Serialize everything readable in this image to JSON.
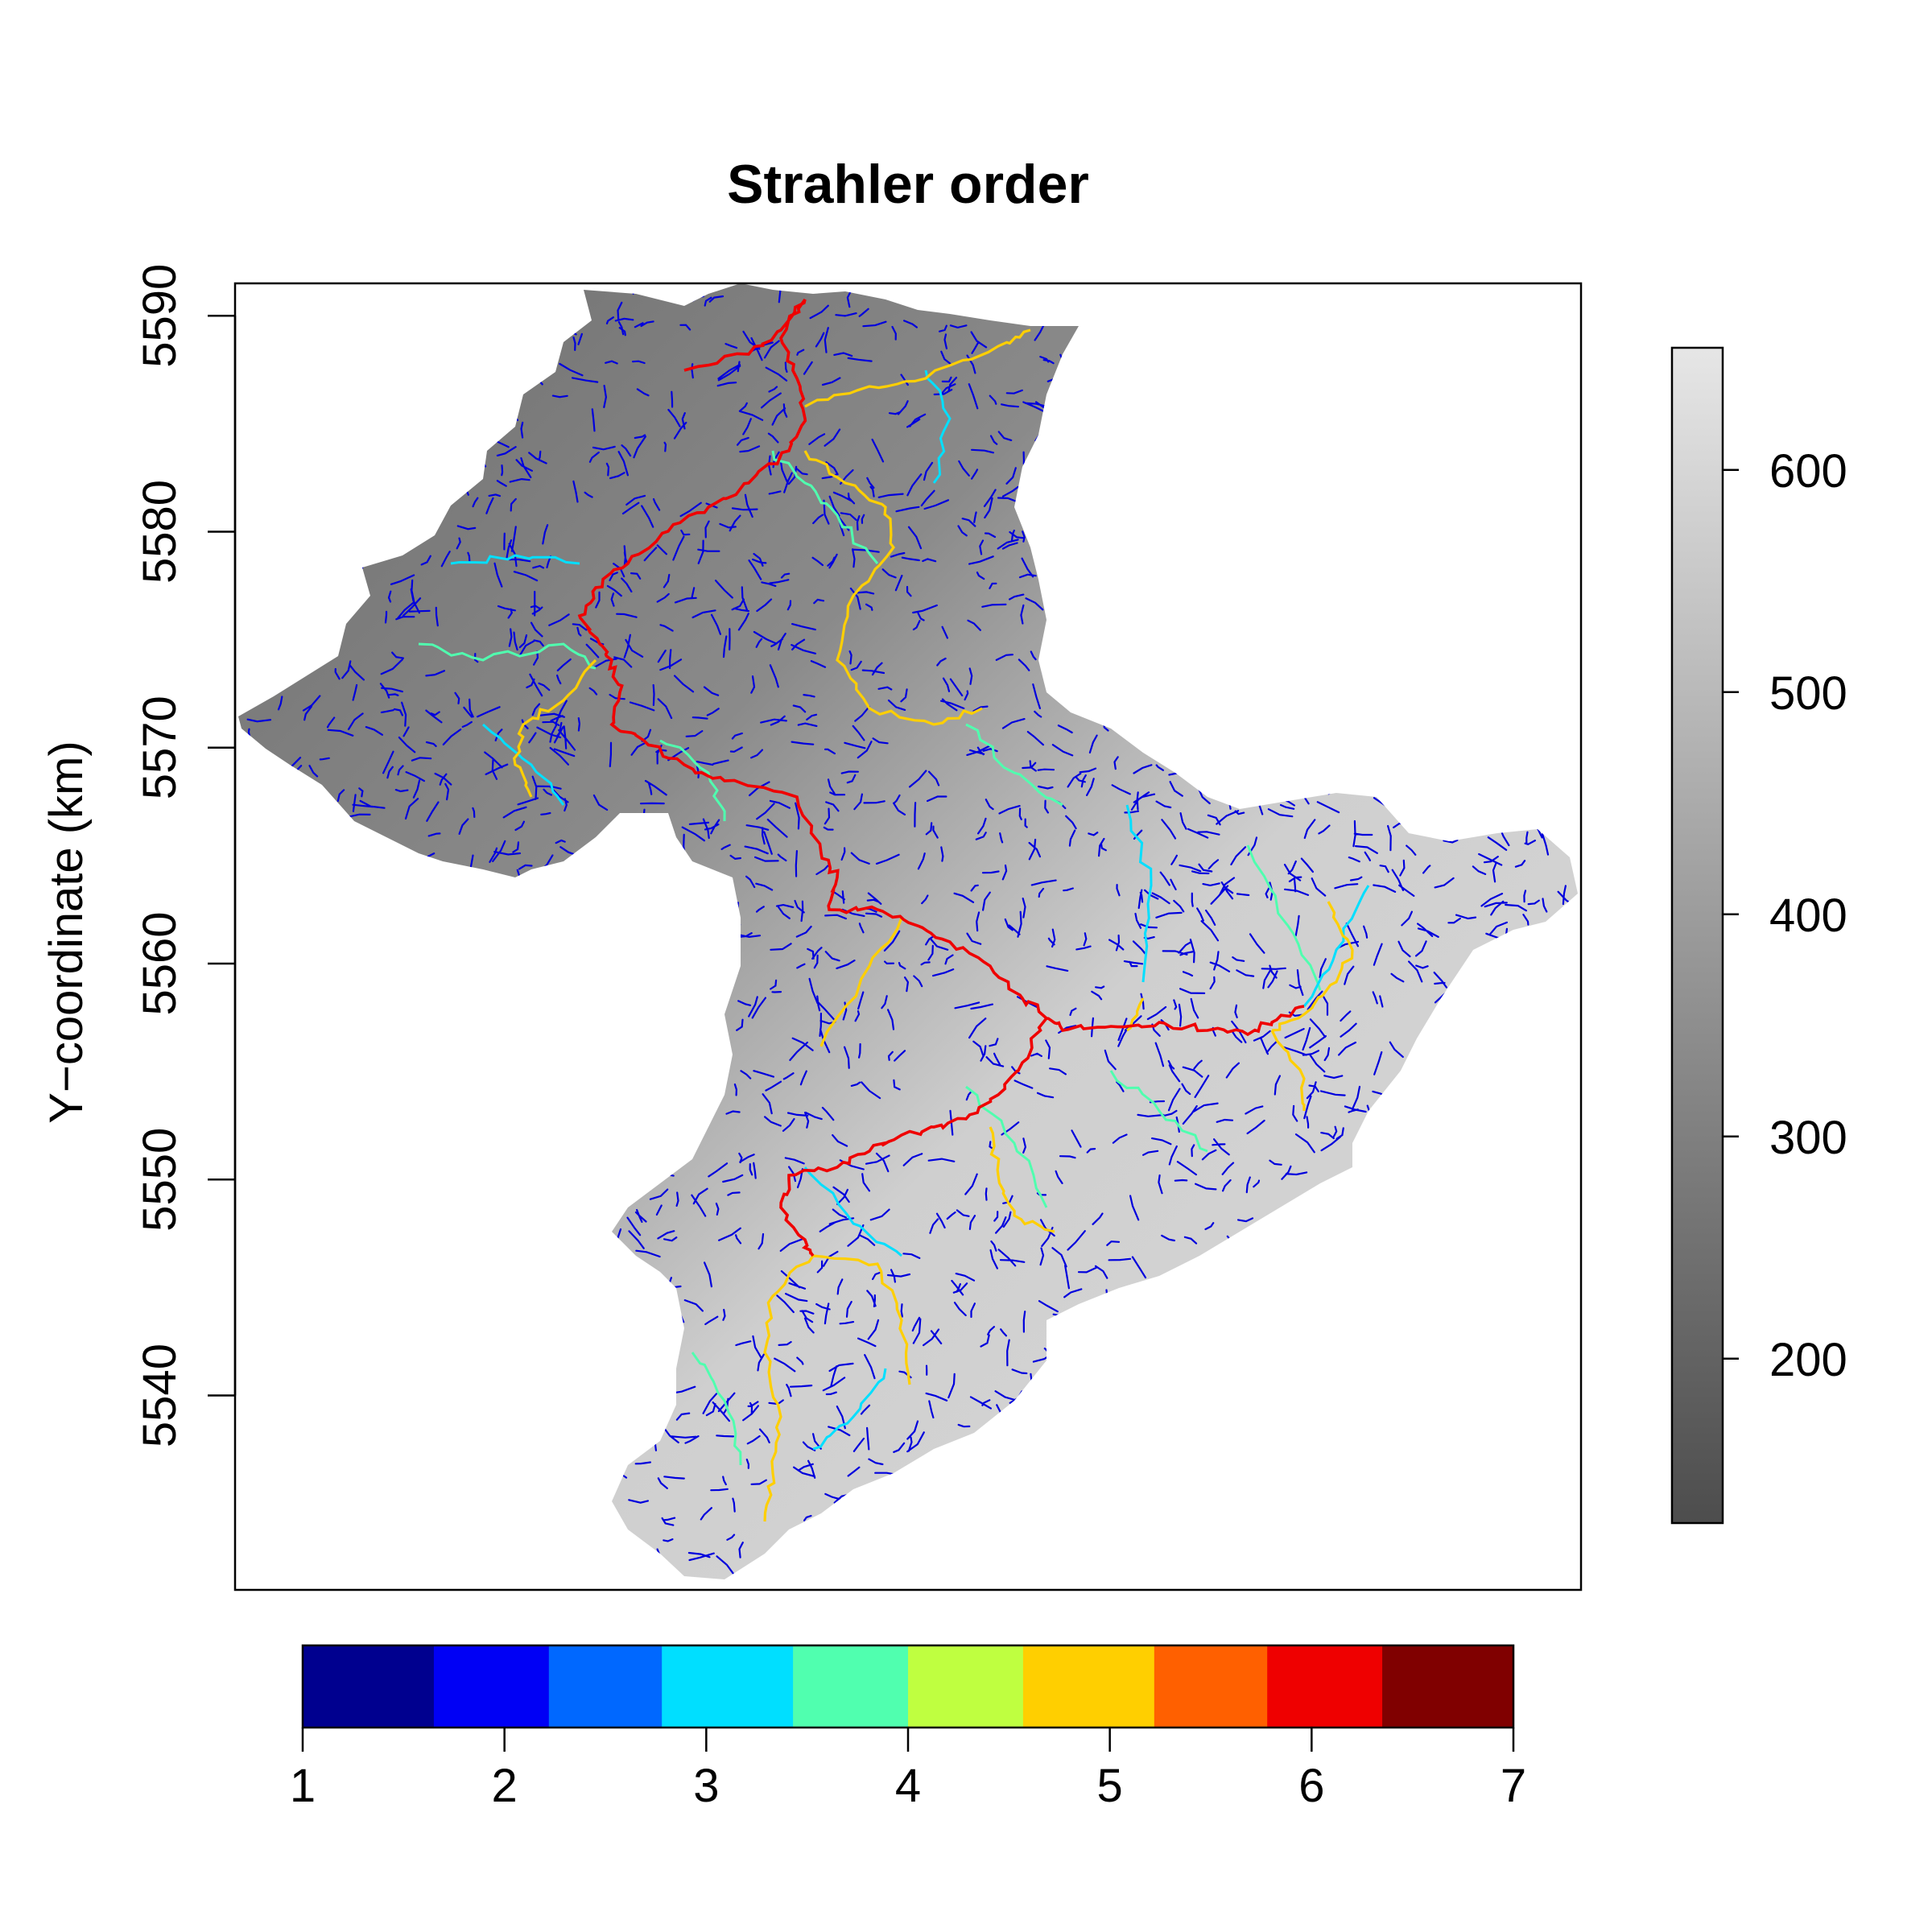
{
  "chart_data": {
    "type": "heatmap",
    "title": "Strahler order",
    "xlabel": "",
    "ylabel": "Y−coordinate (km)",
    "y_ticks": [
      "5540",
      "5550",
      "5560",
      "5570",
      "5580",
      "5590"
    ],
    "y_tick_values": [
      5540,
      5550,
      5560,
      5570,
      5580,
      5590
    ],
    "ylim": [
      5531,
      5591.5
    ],
    "elevation_legend": {
      "ticks": [
        "200",
        "300",
        "400",
        "500",
        "600"
      ],
      "tick_values": [
        200,
        300,
        400,
        500,
        600
      ],
      "range": [
        126,
        655
      ],
      "colors": [
        "#4d4d4d",
        "#e6e6e6"
      ]
    },
    "order_legend": {
      "ticks": [
        "1",
        "2",
        "3",
        "4",
        "5",
        "6",
        "7"
      ],
      "tick_values": [
        1,
        2,
        3,
        4,
        5,
        6,
        7
      ],
      "range": [
        1,
        7
      ],
      "bands": [
        {
          "from": 1.0,
          "to": 1.65,
          "color": "#00008f"
        },
        {
          "from": 1.65,
          "to": 2.22,
          "color": "#0000f5"
        },
        {
          "from": 2.22,
          "to": 2.78,
          "color": "#0068ff"
        },
        {
          "from": 2.78,
          "to": 3.43,
          "color": "#00dfff"
        },
        {
          "from": 3.43,
          "to": 4.0,
          "color": "#50ffaf"
        },
        {
          "from": 4.0,
          "to": 4.57,
          "color": "#bfff40"
        },
        {
          "from": 4.57,
          "to": 5.22,
          "color": "#ffcf00"
        },
        {
          "from": 5.22,
          "to": 5.78,
          "color": "#ff6000"
        },
        {
          "from": 5.78,
          "to": 6.35,
          "color": "#ef0000"
        },
        {
          "from": 6.35,
          "to": 7.0,
          "color": "#800000"
        }
      ]
    }
  }
}
